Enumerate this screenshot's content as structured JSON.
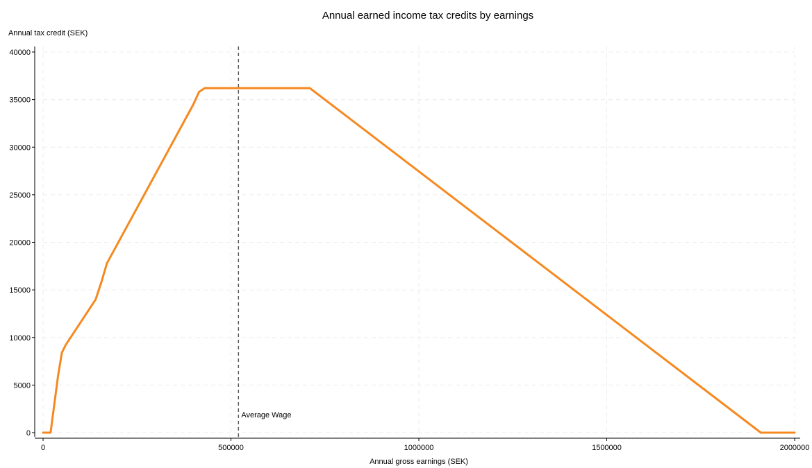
{
  "chart_data": {
    "type": "line",
    "title": "Annual earned income tax credits by earnings",
    "ylabel": "Annual tax credit (SEK)",
    "xlabel": "Annual gross earnings (SEK)",
    "xlim": [
      0,
      2000000
    ],
    "ylim": [
      0,
      40000
    ],
    "xticks": [
      0,
      500000,
      1000000,
      1500000,
      2000000
    ],
    "yticks": [
      0,
      5000,
      10000,
      15000,
      20000,
      25000,
      30000,
      35000,
      40000
    ],
    "grid": true,
    "series": [
      {
        "color": "#f5891f",
        "x": [
          0,
          20000,
          30000,
          40000,
          50000,
          60000,
          140000,
          155000,
          170000,
          400000,
          415000,
          430000,
          710000,
          1910000,
          2000000
        ],
        "y": [
          0,
          0,
          3000,
          6000,
          8400,
          9200,
          14000,
          15800,
          17800,
          34500,
          35800,
          36200,
          36200,
          0,
          0
        ]
      }
    ],
    "vline": {
      "x": 520000,
      "label": "Average Wage",
      "color": "#555555",
      "style": "dashed"
    }
  }
}
